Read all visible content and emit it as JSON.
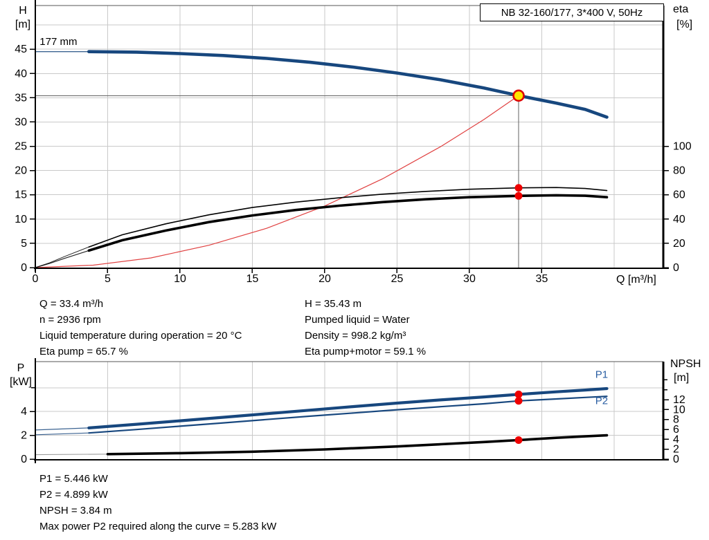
{
  "header": {
    "title_box": "NB 32-160/177, 3*400 V, 50Hz"
  },
  "colors": {
    "blue": "#17477e",
    "black": "#000000",
    "system_red": "#e04040",
    "dot_red": "#ee0000",
    "duty_yellow": "#ffe400",
    "duty_ring": "#dd0000",
    "grid": "#c9c9c9",
    "guide": "#606060",
    "blue_label": "#2b5fa3",
    "axis": "#000000",
    "border": "#555555",
    "lead_gray": "#8a8a8a"
  },
  "annotations": {
    "left": [
      "Q = 33.4 m³/h",
      "n = 2936 rpm",
      "Liquid temperature during operation = 20 °C",
      "Eta pump = 65.7 %"
    ],
    "right": [
      "H = 35.43 m",
      "Pumped liquid = Water",
      "Density = 998.2 kg/m³",
      "Eta pump+motor = 59.1 %"
    ],
    "bottom": [
      "P1 = 5.446 kW",
      "P2 = 4.899 kW",
      "NPSH = 3.84 m",
      "Max power P2 required along the curve = 5.283 kW"
    ]
  },
  "chart_data": [
    {
      "type": "line",
      "id": "performance",
      "title": "NB 32-160/177, 3*400 V, 50Hz",
      "axes": {
        "x": {
          "label": "Q [m³/h]",
          "min": 0,
          "max": 43.4,
          "ticks": [
            0,
            5,
            10,
            15,
            20,
            25,
            30,
            35
          ],
          "grid": [
            5,
            10,
            15,
            20,
            25,
            30,
            35,
            40
          ]
        },
        "left": {
          "label_lines": [
            "H",
            "[m]"
          ],
          "min": 0,
          "max": 54,
          "ticks": [
            0,
            5,
            10,
            15,
            20,
            25,
            30,
            35,
            40,
            45
          ],
          "minor_ticks": [],
          "grid": [
            5,
            10,
            15,
            20,
            25,
            30,
            35,
            40,
            45,
            50
          ]
        },
        "right": {
          "label_lines": [
            "eta",
            "[%]"
          ],
          "min": 0,
          "max": 216,
          "ticks": [
            0,
            20,
            40,
            60,
            80,
            100
          ],
          "minor_ticks": [],
          "grid": []
        }
      },
      "series": [
        {
          "name": "system-curve",
          "axis": "left",
          "color_key": "system_red",
          "width": 1.2,
          "points": [
            [
              0,
              0
            ],
            [
              4,
              0.5
            ],
            [
              8,
              2.0
            ],
            [
              12,
              4.6
            ],
            [
              16,
              8.1
            ],
            [
              20,
              12.7
            ],
            [
              24,
              18.3
            ],
            [
              28,
              24.9
            ],
            [
              31,
              30.5
            ],
            [
              33.4,
              35.43
            ]
          ]
        },
        {
          "name": "eta-pump-curve",
          "axis": "right",
          "color_key": "black",
          "width": 1.6,
          "lead_until": 3.7,
          "lead_width": 1.0,
          "points": [
            [
              0,
              0
            ],
            [
              1,
              4
            ],
            [
              2,
              9
            ],
            [
              3.7,
              17
            ],
            [
              6,
              27
            ],
            [
              9,
              36
            ],
            [
              12,
              43.5
            ],
            [
              15,
              49.5
            ],
            [
              18,
              54
            ],
            [
              21,
              57.5
            ],
            [
              24,
              60.5
            ],
            [
              27,
              62.8
            ],
            [
              30,
              64.6
            ],
            [
              33.4,
              65.7
            ],
            [
              36,
              66
            ],
            [
              38,
              65.2
            ],
            [
              39.5,
              63.5
            ]
          ]
        },
        {
          "name": "eta-pump-motor-curve",
          "axis": "right",
          "color_key": "black",
          "width": 3.6,
          "lead_until": 3.7,
          "lead_width": 1.2,
          "points": [
            [
              0,
              0
            ],
            [
              1,
              3.5
            ],
            [
              2,
              7.5
            ],
            [
              3.7,
              14
            ],
            [
              6,
              22.5
            ],
            [
              9,
              30.5
            ],
            [
              12,
              37.5
            ],
            [
              15,
              43
            ],
            [
              18,
              47.5
            ],
            [
              21,
              51
            ],
            [
              24,
              54
            ],
            [
              27,
              56.3
            ],
            [
              30,
              58
            ],
            [
              33.4,
              59.1
            ],
            [
              36,
              59.6
            ],
            [
              38,
              59.2
            ],
            [
              39.5,
              58.0
            ]
          ]
        },
        {
          "name": "head-curve-177mm",
          "axis": "left",
          "color_key": "blue",
          "width": 4.6,
          "lead_until": 3.7,
          "lead_width": 1.4,
          "points": [
            [
              0,
              44.5
            ],
            [
              3.7,
              44.5
            ],
            [
              7,
              44.4
            ],
            [
              10,
              44.1
            ],
            [
              13,
              43.7
            ],
            [
              16,
              43.1
            ],
            [
              19,
              42.3
            ],
            [
              22,
              41.3
            ],
            [
              25,
              40.1
            ],
            [
              28,
              38.7
            ],
            [
              31,
              37.0
            ],
            [
              33.4,
              35.43
            ],
            [
              36,
              33.9
            ],
            [
              38,
              32.6
            ],
            [
              39.5,
              31.0
            ]
          ]
        }
      ],
      "guides": [
        {
          "name": "duty-horizontal-guide",
          "type": "h",
          "axis": "left",
          "y": 35.43,
          "x1": 0,
          "x2": 33.4
        },
        {
          "name": "duty-vertical-guide",
          "type": "v",
          "axis": "left",
          "x": 33.4,
          "y1": 0,
          "y2": 35.43
        }
      ],
      "markers": [
        {
          "name": "eta-pump-point",
          "axis": "right",
          "x": 33.4,
          "y": 65.7,
          "style": "dot",
          "interactable": false
        },
        {
          "name": "eta-pump-motor-point",
          "axis": "right",
          "x": 33.4,
          "y": 59.1,
          "style": "dot",
          "interactable": false
        },
        {
          "name": "duty-point",
          "axis": "left",
          "x": 33.4,
          "y": 35.43,
          "style": "duty",
          "interactable": true
        }
      ],
      "labels": [
        {
          "name": "impeller-size-label",
          "text": "177 mm",
          "axis": "left",
          "x": 0.3,
          "y": 45.9,
          "anchor": "start",
          "color_key": "black"
        }
      ]
    },
    {
      "type": "line",
      "id": "power",
      "title": "",
      "axes": {
        "x": {
          "label": "",
          "min": 0,
          "max": 43.4,
          "ticks": [],
          "grid": [
            5,
            10,
            15,
            20,
            25,
            30,
            35,
            40
          ]
        },
        "left": {
          "label_lines": [
            "P",
            "[kW]"
          ],
          "min": 0,
          "max": 8.2,
          "ticks": [
            0,
            2,
            4
          ],
          "minor_ticks": [
            6
          ],
          "grid": [
            2,
            4,
            6
          ]
        },
        "right": {
          "label_lines": [
            "NPSH",
            "[m]"
          ],
          "min": 0,
          "max": 19.7,
          "ticks": [
            0,
            2,
            4,
            6,
            8,
            10,
            12
          ],
          "minor_ticks": [
            14,
            16
          ],
          "grid": []
        }
      },
      "series": [
        {
          "name": "npsh-curve",
          "axis": "right",
          "color_key": "black",
          "width": 3.6,
          "lead_until": 3.7,
          "lead_width": 1.1,
          "lead_color_key": "lead_gray",
          "points": [
            [
              0,
              0.9
            ],
            [
              5,
              1.0
            ],
            [
              10,
              1.2
            ],
            [
              15,
              1.5
            ],
            [
              20,
              1.95
            ],
            [
              25,
              2.55
            ],
            [
              28,
              3.0
            ],
            [
              31,
              3.45
            ],
            [
              33.4,
              3.84
            ],
            [
              36,
              4.3
            ],
            [
              38,
              4.6
            ],
            [
              39.5,
              4.8
            ]
          ]
        },
        {
          "name": "p2-curve",
          "axis": "left",
          "color_key": "blue",
          "width": 2.2,
          "lead_until": 3.7,
          "lead_width": 1.1,
          "points": [
            [
              0,
              2.05
            ],
            [
              3.7,
              2.2
            ],
            [
              7,
              2.49
            ],
            [
              10,
              2.77
            ],
            [
              13,
              3.05
            ],
            [
              16,
              3.33
            ],
            [
              19,
              3.61
            ],
            [
              22,
              3.88
            ],
            [
              25,
              4.15
            ],
            [
              28,
              4.41
            ],
            [
              31,
              4.65
            ],
            [
              33.4,
              4.899
            ],
            [
              36,
              5.06
            ],
            [
              38,
              5.19
            ],
            [
              39.5,
              5.283
            ]
          ]
        },
        {
          "name": "p1-curve",
          "axis": "left",
          "color_key": "blue",
          "width": 4.2,
          "lead_until": 3.7,
          "lead_width": 1.2,
          "points": [
            [
              0,
              2.45
            ],
            [
              3.7,
              2.62
            ],
            [
              7,
              2.93
            ],
            [
              10,
              3.22
            ],
            [
              13,
              3.52
            ],
            [
              16,
              3.82
            ],
            [
              19,
              4.12
            ],
            [
              22,
              4.42
            ],
            [
              25,
              4.71
            ],
            [
              28,
              4.98
            ],
            [
              31,
              5.23
            ],
            [
              33.4,
              5.446
            ],
            [
              36,
              5.66
            ],
            [
              38,
              5.81
            ],
            [
              39.5,
              5.93
            ]
          ]
        }
      ],
      "guides": [],
      "markers": [
        {
          "name": "p1-point",
          "axis": "left",
          "x": 33.4,
          "y": 5.446,
          "style": "dot",
          "interactable": false
        },
        {
          "name": "p2-point",
          "axis": "left",
          "x": 33.4,
          "y": 4.899,
          "style": "dot",
          "interactable": false
        },
        {
          "name": "npsh-point",
          "axis": "right",
          "x": 33.4,
          "y": 3.84,
          "style": "dot",
          "interactable": false
        }
      ],
      "labels": [
        {
          "name": "p1-curve-label",
          "text": "P1",
          "axis": "left",
          "x": 38.7,
          "y": 6.82,
          "anchor": "start",
          "color_key": "blue_label"
        },
        {
          "name": "p2-curve-label",
          "text": "P2",
          "axis": "left",
          "x": 38.7,
          "y": 4.63,
          "anchor": "start",
          "color_key": "blue_label"
        }
      ]
    }
  ]
}
